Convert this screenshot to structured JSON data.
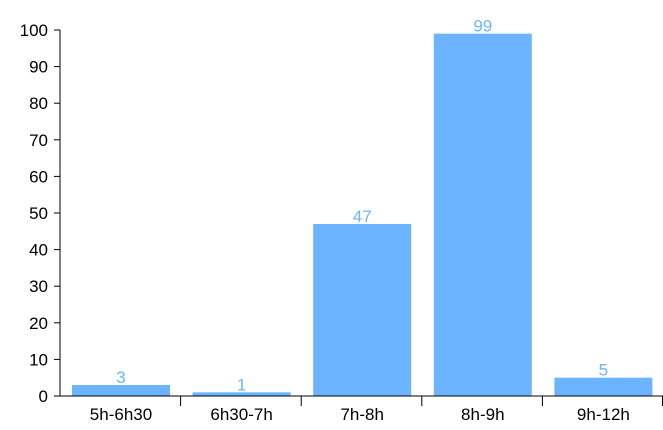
{
  "chart_data": {
    "type": "bar",
    "title": "",
    "xlabel": "",
    "ylabel": "",
    "categories": [
      "5h-6h30",
      "6h30-7h",
      "7h-8h",
      "8h-9h",
      "9h-12h"
    ],
    "values": [
      3,
      1,
      47,
      99,
      5
    ],
    "data_labels": [
      "3",
      "1",
      "47",
      "99",
      "5"
    ],
    "y_ticks": [
      "0",
      "10",
      "20",
      "30",
      "40",
      "50",
      "60",
      "70",
      "80",
      "90",
      "100"
    ],
    "ylim": [
      0,
      100
    ],
    "grid": false,
    "legend": "none",
    "colors": {
      "bar": "#6cb4ff",
      "data_label": "#6cb4ff",
      "axis": "#000000"
    }
  }
}
